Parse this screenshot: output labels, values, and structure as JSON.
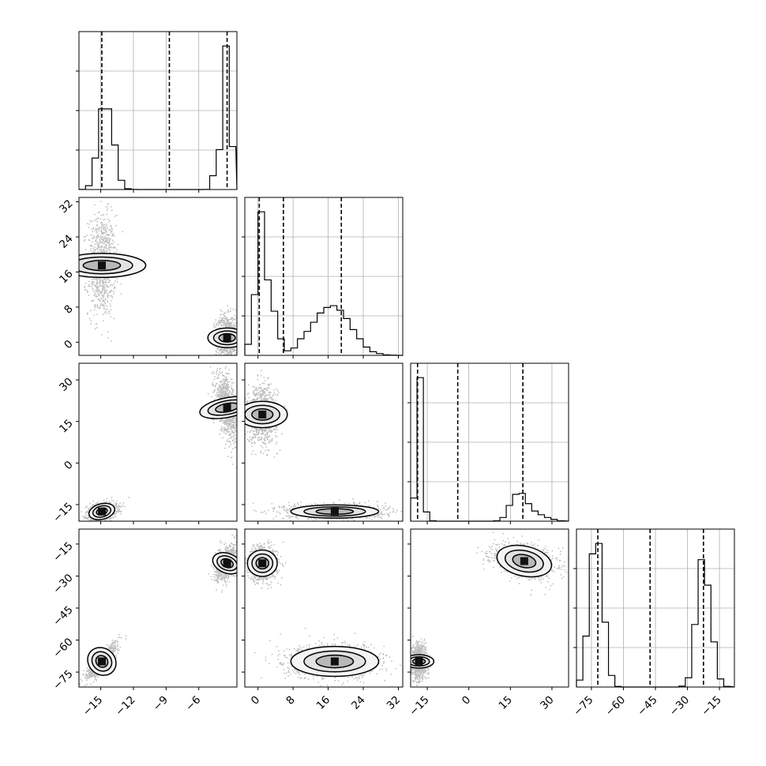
{
  "chart_data": {
    "type": "corner",
    "title": "",
    "grid": true,
    "params": [
      {
        "index": 0,
        "range": [
          -17,
          -2.5
        ],
        "ticks": [
          -15,
          -12,
          -9,
          -6
        ],
        "tick_labels": [
          "−15",
          "−12",
          "−9",
          "−6"
        ],
        "quantiles": [
          -14.9,
          -8.7,
          -3.4
        ]
      },
      {
        "index": 1,
        "range": [
          -3,
          33
        ],
        "ticks": [
          0,
          8,
          16,
          24,
          32
        ],
        "tick_labels": [
          "0",
          "8",
          "16",
          "24",
          "32"
        ],
        "quantiles": [
          0.3,
          5.8,
          19.0
        ]
      },
      {
        "index": 2,
        "range": [
          -21,
          36
        ],
        "ticks": [
          -15,
          0,
          15,
          30
        ],
        "tick_labels": [
          "−15",
          "0",
          "15",
          "30"
        ],
        "quantiles": [
          -18.5,
          -4.0,
          19.5
        ]
      },
      {
        "index": 3,
        "range": [
          -82,
          -8
        ],
        "ticks": [
          -75,
          -60,
          -45,
          -30,
          -15
        ],
        "tick_labels": [
          "−75",
          "−60",
          "−45",
          "−30",
          "−15"
        ],
        "quantiles": [
          -72.0,
          -47.5,
          -22.5
        ]
      }
    ],
    "histograms": [
      {
        "param": 0,
        "edges": [
          -17,
          -16.4,
          -15.8,
          -15.2,
          -14.6,
          -14.0,
          -13.4,
          -12.8,
          -12.2,
          -11.6,
          -11.0,
          -10.4,
          -9.8,
          -9.2,
          -8.6,
          -8.0,
          -7.4,
          -6.8,
          -6.2,
          -5.6,
          -5.0,
          -4.4,
          -3.8,
          -3.2,
          -2.6
        ],
        "counts": [
          2,
          50,
          410,
          1050,
          1050,
          580,
          120,
          10,
          1,
          0,
          0,
          0,
          0,
          0,
          0,
          0,
          0,
          0,
          0,
          2,
          180,
          520,
          1870,
          560
        ]
      },
      {
        "param": 1,
        "edges": [
          -3,
          -1.5,
          0,
          1.5,
          3,
          4.5,
          6,
          7.5,
          9,
          10.5,
          12,
          13.5,
          15,
          16.5,
          18,
          19.5,
          21,
          22.5,
          24,
          25.5,
          27,
          28.5,
          30,
          31.5,
          33
        ],
        "counts": [
          60,
          330,
          780,
          410,
          240,
          90,
          25,
          40,
          90,
          130,
          180,
          230,
          260,
          270,
          245,
          200,
          140,
          90,
          45,
          20,
          10,
          3,
          1,
          0
        ]
      },
      {
        "param": 2,
        "edges": [
          -21,
          -18.7,
          -16.4,
          -14.1,
          -11.8,
          -9.5,
          -7.2,
          -4.9,
          -2.6,
          -0.3,
          2.0,
          4.3,
          6.6,
          8.9,
          11.2,
          13.5,
          15.8,
          18.1,
          20.4,
          22.7,
          25.0,
          27.3,
          29.6,
          31.9,
          34.2
        ],
        "counts": [
          250,
          1550,
          100,
          5,
          0,
          0,
          0,
          0,
          0,
          0,
          0,
          0,
          0,
          5,
          40,
          170,
          290,
          300,
          190,
          110,
          70,
          40,
          20,
          5
        ]
      },
      {
        "param": 3,
        "edges": [
          -82,
          -79,
          -76,
          -73,
          -70,
          -67,
          -64,
          -61,
          -58,
          -55,
          -52,
          -49,
          -46,
          -43,
          -40,
          -37,
          -34,
          -31,
          -28,
          -25,
          -22,
          -19,
          -16,
          -13,
          -10
        ],
        "counts": [
          60,
          440,
          1150,
          1240,
          560,
          100,
          5,
          0,
          0,
          0,
          0,
          0,
          0,
          0,
          0,
          0,
          8,
          80,
          540,
          1100,
          880,
          390,
          70,
          5
        ]
      }
    ],
    "pairs": [
      {
        "row": 1,
        "col": 0,
        "modes": [
          {
            "mx": -14.9,
            "my": 17.5,
            "sx": 0.55,
            "sy": 5.0,
            "rho": 0.0
          },
          {
            "mx": -3.4,
            "my": 1.0,
            "sx": 0.45,
            "sy": 2.2,
            "rho": 0.0
          }
        ]
      },
      {
        "row": 2,
        "col": 0,
        "modes": [
          {
            "mx": -14.9,
            "my": -17.5,
            "sx": 0.6,
            "sy": 1.4,
            "rho": 0.3
          },
          {
            "mx": -3.4,
            "my": 20.0,
            "sx": 0.45,
            "sy": 5.0,
            "rho": -0.5
          }
        ]
      },
      {
        "row": 2,
        "col": 1,
        "modes": [
          {
            "mx": 1.0,
            "my": 17.5,
            "sx": 1.5,
            "sy": 4.5,
            "rho": 0.0
          },
          {
            "mx": 17.5,
            "my": -17.5,
            "sx": 5.0,
            "sy": 1.2,
            "rho": 0.0
          }
        ]
      },
      {
        "row": 3,
        "col": 0,
        "modes": [
          {
            "mx": -14.9,
            "my": -70.0,
            "sx": 0.6,
            "sy": 3.5,
            "rho": 0.85
          },
          {
            "mx": -3.4,
            "my": -24.0,
            "sx": 0.45,
            "sy": 3.5,
            "rho": 0.4
          }
        ]
      },
      {
        "row": 3,
        "col": 1,
        "modes": [
          {
            "mx": 1.0,
            "my": -24.0,
            "sx": 1.5,
            "sy": 3.5,
            "rho": 0.0
          },
          {
            "mx": 17.5,
            "my": -70.0,
            "sx": 5.0,
            "sy": 3.5,
            "rho": 0.0
          }
        ]
      },
      {
        "row": 3,
        "col": 2,
        "modes": [
          {
            "mx": -18.0,
            "my": -70.0,
            "sx": 1.2,
            "sy": 3.5,
            "rho": 0.0
          },
          {
            "mx": 20.0,
            "my": -23.0,
            "sx": 5.0,
            "sy": 3.5,
            "rho": -0.3
          }
        ]
      }
    ]
  }
}
